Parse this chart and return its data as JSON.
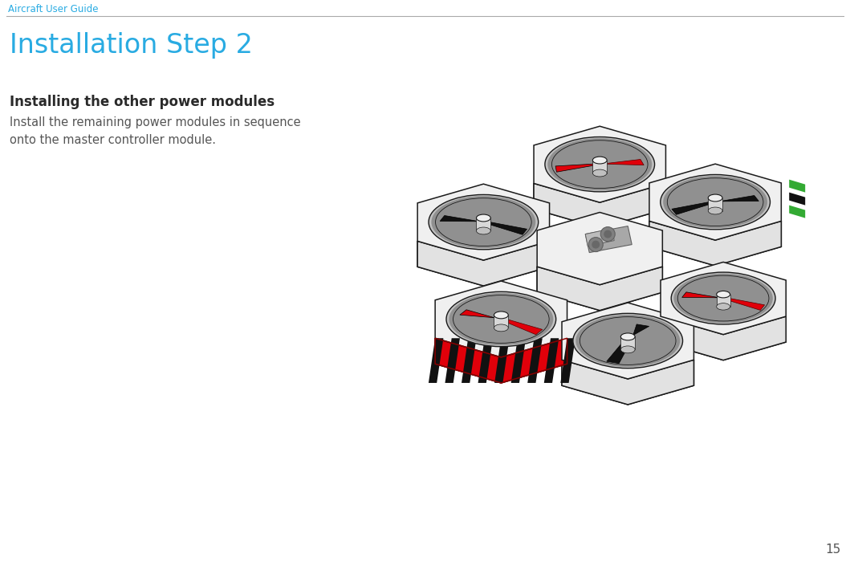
{
  "background_color": "#ffffff",
  "header_text": "Aircraft User Guide",
  "header_color": "#29abe2",
  "header_fontsize": 8.5,
  "header_line_color": "#aaaaaa",
  "title_text": "Installation Step 2",
  "title_color": "#29abe2",
  "title_fontsize": 24,
  "section_title": "Installing the other power modules",
  "section_title_color": "#2a2a2a",
  "section_title_fontsize": 12,
  "body_text": "Install the remaining power modules in sequence\nonto the master controller module.",
  "body_color": "#555555",
  "body_fontsize": 10.5,
  "page_number": "15",
  "page_number_color": "#555555",
  "page_number_fontsize": 11,
  "red": "#e0000a",
  "green": "#33aa33",
  "black": "#111111",
  "outline": "#1a1a1a",
  "white_body": "#f0f0f0",
  "lgray": "#e2e2e2",
  "mgray": "#c0c0c0",
  "dgray": "#909090",
  "ddgray": "#606060"
}
